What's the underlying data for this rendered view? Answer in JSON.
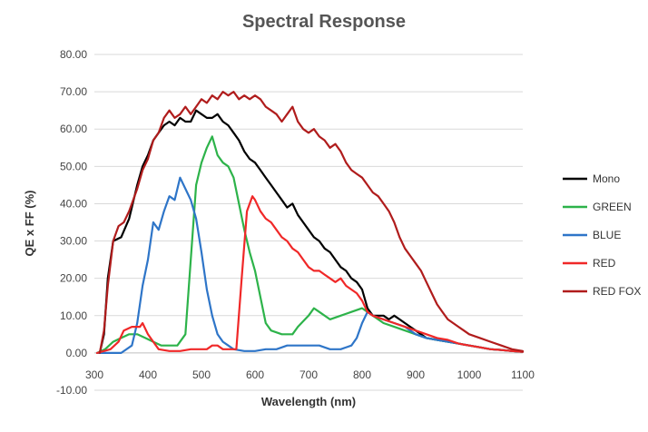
{
  "chart_data": {
    "type": "line",
    "title": "Spectral Response",
    "xlabel": "Wavelength (nm)",
    "ylabel": "QE x FF (%)",
    "xlim": [
      300,
      1100
    ],
    "ylim": [
      -10,
      80
    ],
    "xticks": [
      "300",
      "400",
      "500",
      "600",
      "700",
      "800",
      "900",
      "1000",
      "1100"
    ],
    "yticks": [
      "-10.00",
      "0.00",
      "10.00",
      "20.00",
      "30.00",
      "40.00",
      "50.00",
      "60.00",
      "70.00",
      "80.00"
    ],
    "grid": "horizontal",
    "legend_position": "right",
    "series": [
      {
        "name": "Mono",
        "color": "#000000",
        "points": [
          [
            310,
            0
          ],
          [
            318,
            5
          ],
          [
            325,
            20
          ],
          [
            335,
            30
          ],
          [
            350,
            31
          ],
          [
            365,
            36
          ],
          [
            380,
            45
          ],
          [
            390,
            50
          ],
          [
            400,
            53
          ],
          [
            410,
            57
          ],
          [
            420,
            59
          ],
          [
            430,
            61
          ],
          [
            440,
            62
          ],
          [
            450,
            61
          ],
          [
            460,
            63
          ],
          [
            470,
            62
          ],
          [
            480,
            62
          ],
          [
            490,
            65
          ],
          [
            500,
            64
          ],
          [
            510,
            63
          ],
          [
            520,
            63
          ],
          [
            530,
            64
          ],
          [
            540,
            62
          ],
          [
            550,
            61
          ],
          [
            560,
            59
          ],
          [
            570,
            57
          ],
          [
            580,
            54
          ],
          [
            590,
            52
          ],
          [
            600,
            51
          ],
          [
            610,
            49
          ],
          [
            620,
            47
          ],
          [
            630,
            45
          ],
          [
            640,
            43
          ],
          [
            650,
            41
          ],
          [
            660,
            39
          ],
          [
            670,
            40
          ],
          [
            680,
            37
          ],
          [
            690,
            35
          ],
          [
            700,
            33
          ],
          [
            710,
            31
          ],
          [
            720,
            30
          ],
          [
            730,
            28
          ],
          [
            740,
            27
          ],
          [
            750,
            25
          ],
          [
            760,
            23
          ],
          [
            770,
            22
          ],
          [
            780,
            20
          ],
          [
            790,
            19
          ],
          [
            800,
            17
          ],
          [
            810,
            12
          ],
          [
            820,
            10
          ],
          [
            830,
            10
          ],
          [
            840,
            10
          ],
          [
            850,
            9
          ],
          [
            860,
            10
          ],
          [
            870,
            9
          ],
          [
            880,
            8
          ],
          [
            890,
            7
          ],
          [
            900,
            6
          ],
          [
            910,
            5
          ],
          [
            920,
            4
          ],
          [
            940,
            3.5
          ],
          [
            960,
            3
          ],
          [
            980,
            2.5
          ],
          [
            1000,
            2
          ],
          [
            1020,
            1.5
          ],
          [
            1040,
            1
          ],
          [
            1060,
            0.8
          ],
          [
            1080,
            0.5
          ],
          [
            1100,
            0.3
          ]
        ]
      },
      {
        "name": "GREEN",
        "color": "#2db34a",
        "points": [
          [
            305,
            0
          ],
          [
            320,
            1
          ],
          [
            335,
            3
          ],
          [
            350,
            4
          ],
          [
            365,
            5
          ],
          [
            380,
            5
          ],
          [
            395,
            4
          ],
          [
            410,
            3
          ],
          [
            425,
            2
          ],
          [
            440,
            2
          ],
          [
            455,
            2
          ],
          [
            470,
            5
          ],
          [
            480,
            25
          ],
          [
            490,
            45
          ],
          [
            500,
            51
          ],
          [
            510,
            55
          ],
          [
            520,
            58
          ],
          [
            530,
            53
          ],
          [
            540,
            51
          ],
          [
            550,
            50
          ],
          [
            560,
            47
          ],
          [
            570,
            40
          ],
          [
            580,
            33
          ],
          [
            590,
            27
          ],
          [
            600,
            22
          ],
          [
            610,
            15
          ],
          [
            620,
            8
          ],
          [
            630,
            6
          ],
          [
            650,
            5
          ],
          [
            670,
            5
          ],
          [
            680,
            7
          ],
          [
            700,
            10
          ],
          [
            710,
            12
          ],
          [
            720,
            11
          ],
          [
            740,
            9
          ],
          [
            760,
            10
          ],
          [
            780,
            11
          ],
          [
            800,
            12
          ],
          [
            820,
            10
          ],
          [
            840,
            8
          ],
          [
            860,
            7
          ],
          [
            880,
            6
          ],
          [
            900,
            5
          ],
          [
            920,
            4
          ],
          [
            940,
            3.5
          ],
          [
            960,
            3
          ],
          [
            980,
            2.5
          ],
          [
            1000,
            2
          ],
          [
            1020,
            1.5
          ],
          [
            1040,
            1
          ],
          [
            1060,
            0.8
          ],
          [
            1080,
            0.5
          ],
          [
            1100,
            0.3
          ]
        ]
      },
      {
        "name": "BLUE",
        "color": "#2e75c8",
        "points": [
          [
            305,
            0
          ],
          [
            350,
            0
          ],
          [
            370,
            2
          ],
          [
            380,
            8
          ],
          [
            390,
            18
          ],
          [
            400,
            25
          ],
          [
            410,
            35
          ],
          [
            420,
            33
          ],
          [
            430,
            38
          ],
          [
            440,
            42
          ],
          [
            450,
            41
          ],
          [
            460,
            47
          ],
          [
            470,
            44
          ],
          [
            480,
            41
          ],
          [
            490,
            36
          ],
          [
            500,
            27
          ],
          [
            510,
            17
          ],
          [
            520,
            10
          ],
          [
            530,
            5
          ],
          [
            540,
            3
          ],
          [
            550,
            2
          ],
          [
            560,
            1
          ],
          [
            580,
            0.5
          ],
          [
            600,
            0.5
          ],
          [
            620,
            1
          ],
          [
            640,
            1
          ],
          [
            660,
            2
          ],
          [
            680,
            2
          ],
          [
            700,
            2
          ],
          [
            720,
            2
          ],
          [
            740,
            1
          ],
          [
            760,
            1
          ],
          [
            780,
            2
          ],
          [
            790,
            4
          ],
          [
            800,
            8
          ],
          [
            810,
            11
          ],
          [
            820,
            10
          ],
          [
            840,
            9
          ],
          [
            860,
            8
          ],
          [
            880,
            7
          ],
          [
            900,
            5
          ],
          [
            920,
            4
          ],
          [
            940,
            3.5
          ],
          [
            960,
            3
          ],
          [
            980,
            2.5
          ],
          [
            1000,
            2
          ],
          [
            1020,
            1.5
          ],
          [
            1040,
            1
          ],
          [
            1060,
            0.8
          ],
          [
            1080,
            0.5
          ],
          [
            1100,
            0.3
          ]
        ]
      },
      {
        "name": "RED",
        "color": "#f02828",
        "points": [
          [
            305,
            0
          ],
          [
            330,
            1
          ],
          [
            345,
            3
          ],
          [
            355,
            6
          ],
          [
            370,
            7
          ],
          [
            385,
            7
          ],
          [
            390,
            8
          ],
          [
            400,
            5
          ],
          [
            410,
            3
          ],
          [
            420,
            1
          ],
          [
            440,
            0.5
          ],
          [
            460,
            0.5
          ],
          [
            480,
            1
          ],
          [
            500,
            1
          ],
          [
            510,
            1
          ],
          [
            520,
            2
          ],
          [
            530,
            2
          ],
          [
            540,
            1
          ],
          [
            555,
            1
          ],
          [
            565,
            1
          ],
          [
            575,
            20
          ],
          [
            585,
            38
          ],
          [
            595,
            42
          ],
          [
            600,
            41
          ],
          [
            610,
            38
          ],
          [
            620,
            36
          ],
          [
            630,
            35
          ],
          [
            640,
            33
          ],
          [
            650,
            31
          ],
          [
            660,
            30
          ],
          [
            670,
            28
          ],
          [
            680,
            27
          ],
          [
            690,
            25
          ],
          [
            700,
            23
          ],
          [
            710,
            22
          ],
          [
            720,
            22
          ],
          [
            730,
            21
          ],
          [
            740,
            20
          ],
          [
            750,
            19
          ],
          [
            760,
            20
          ],
          [
            770,
            18
          ],
          [
            780,
            17
          ],
          [
            790,
            16
          ],
          [
            800,
            14
          ],
          [
            810,
            11
          ],
          [
            820,
            10
          ],
          [
            840,
            9
          ],
          [
            860,
            8
          ],
          [
            880,
            7
          ],
          [
            900,
            6
          ],
          [
            920,
            5
          ],
          [
            940,
            4
          ],
          [
            960,
            3.5
          ],
          [
            980,
            2.5
          ],
          [
            1000,
            2
          ],
          [
            1020,
            1.5
          ],
          [
            1040,
            1
          ],
          [
            1060,
            0.8
          ],
          [
            1080,
            0.5
          ],
          [
            1100,
            0.3
          ]
        ]
      },
      {
        "name": "RED FOX",
        "color": "#b01c1c",
        "points": [
          [
            310,
            0
          ],
          [
            318,
            6
          ],
          [
            325,
            18
          ],
          [
            335,
            30
          ],
          [
            345,
            34
          ],
          [
            355,
            35
          ],
          [
            365,
            38
          ],
          [
            380,
            44
          ],
          [
            390,
            49
          ],
          [
            400,
            52
          ],
          [
            410,
            57
          ],
          [
            420,
            59
          ],
          [
            430,
            63
          ],
          [
            440,
            65
          ],
          [
            450,
            63
          ],
          [
            460,
            64
          ],
          [
            470,
            66
          ],
          [
            480,
            64
          ],
          [
            490,
            66
          ],
          [
            500,
            68
          ],
          [
            510,
            67
          ],
          [
            520,
            69
          ],
          [
            530,
            68
          ],
          [
            540,
            70
          ],
          [
            550,
            69
          ],
          [
            560,
            70
          ],
          [
            570,
            68
          ],
          [
            580,
            69
          ],
          [
            590,
            68
          ],
          [
            600,
            69
          ],
          [
            610,
            68
          ],
          [
            620,
            66
          ],
          [
            630,
            65
          ],
          [
            640,
            64
          ],
          [
            650,
            62
          ],
          [
            660,
            64
          ],
          [
            670,
            66
          ],
          [
            680,
            62
          ],
          [
            690,
            60
          ],
          [
            700,
            59
          ],
          [
            710,
            60
          ],
          [
            720,
            58
          ],
          [
            730,
            57
          ],
          [
            740,
            55
          ],
          [
            750,
            56
          ],
          [
            760,
            54
          ],
          [
            770,
            51
          ],
          [
            780,
            49
          ],
          [
            790,
            48
          ],
          [
            800,
            47
          ],
          [
            810,
            45
          ],
          [
            820,
            43
          ],
          [
            830,
            42
          ],
          [
            840,
            40
          ],
          [
            850,
            38
          ],
          [
            860,
            35
          ],
          [
            870,
            31
          ],
          [
            880,
            28
          ],
          [
            890,
            26
          ],
          [
            900,
            24
          ],
          [
            910,
            22
          ],
          [
            920,
            19
          ],
          [
            930,
            16
          ],
          [
            940,
            13
          ],
          [
            950,
            11
          ],
          [
            960,
            9
          ],
          [
            970,
            8
          ],
          [
            980,
            7
          ],
          [
            990,
            6
          ],
          [
            1000,
            5
          ],
          [
            1020,
            4
          ],
          [
            1040,
            3
          ],
          [
            1060,
            2
          ],
          [
            1080,
            1
          ],
          [
            1100,
            0.5
          ]
        ]
      }
    ]
  }
}
